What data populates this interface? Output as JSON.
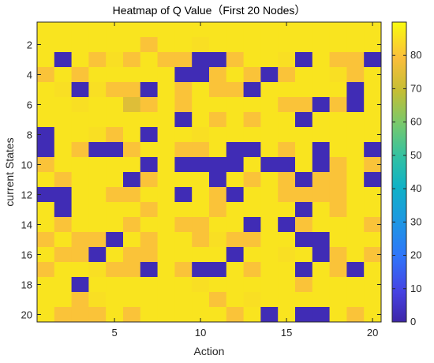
{
  "chart_data": {
    "type": "heatmap",
    "title": "Heatmap of Q Value（First 20 Nodes）",
    "xlabel": "Action",
    "ylabel": "current States",
    "xlim": [
      0.5,
      20.5
    ],
    "ylim": [
      0.5,
      20.5
    ],
    "x_ticks": [
      5,
      10,
      15,
      20
    ],
    "y_ticks": [
      2,
      4,
      6,
      8,
      10,
      12,
      14,
      16,
      18,
      20
    ],
    "colorbar": {
      "min": 0,
      "max": 90,
      "ticks": [
        0,
        10,
        20,
        30,
        40,
        50,
        60,
        70,
        80
      ],
      "colormap": "parula"
    },
    "x": [
      1,
      2,
      3,
      4,
      5,
      6,
      7,
      8,
      9,
      10,
      11,
      12,
      13,
      14,
      15,
      16,
      17,
      18,
      19,
      20
    ],
    "y": [
      1,
      2,
      3,
      4,
      5,
      6,
      7,
      8,
      9,
      10,
      11,
      12,
      13,
      14,
      15,
      16,
      17,
      18,
      19,
      20
    ],
    "values": [
      [
        86,
        86,
        86,
        86,
        86,
        86,
        86,
        86,
        86,
        86,
        86,
        86,
        86,
        86,
        86,
        86,
        86,
        86,
        86,
        86
      ],
      [
        86,
        86,
        86,
        86,
        86,
        86,
        80,
        86,
        86,
        85,
        86,
        86,
        86,
        86,
        86,
        86,
        86,
        86,
        86,
        86
      ],
      [
        86,
        2,
        86,
        80,
        85,
        80,
        86,
        80,
        80,
        2,
        2,
        80,
        86,
        86,
        85,
        2,
        86,
        80,
        80,
        2
      ],
      [
        80,
        86,
        80,
        86,
        86,
        86,
        86,
        86,
        2,
        2,
        80,
        86,
        80,
        2,
        80,
        86,
        86,
        85,
        80,
        86
      ],
      [
        86,
        85,
        2,
        85,
        80,
        80,
        2,
        86,
        80,
        86,
        80,
        80,
        2,
        86,
        86,
        86,
        86,
        86,
        2,
        86
      ],
      [
        86,
        86,
        85,
        86,
        86,
        74,
        80,
        86,
        80,
        86,
        86,
        86,
        86,
        86,
        80,
        80,
        2,
        80,
        2,
        86
      ],
      [
        86,
        86,
        86,
        86,
        86,
        86,
        86,
        86,
        2,
        86,
        80,
        86,
        80,
        86,
        86,
        2,
        86,
        86,
        86,
        86
      ],
      [
        2,
        86,
        86,
        85,
        80,
        86,
        2,
        86,
        86,
        85,
        86,
        86,
        86,
        86,
        86,
        86,
        86,
        86,
        86,
        86
      ],
      [
        2,
        86,
        80,
        2,
        2,
        80,
        86,
        86,
        80,
        80,
        86,
        2,
        2,
        86,
        80,
        86,
        2,
        86,
        86,
        2
      ],
      [
        80,
        86,
        86,
        86,
        86,
        86,
        2,
        86,
        2,
        2,
        2,
        2,
        86,
        2,
        2,
        86,
        2,
        80,
        86,
        80
      ],
      [
        86,
        80,
        86,
        86,
        86,
        2,
        80,
        86,
        86,
        86,
        2,
        86,
        80,
        86,
        80,
        2,
        80,
        80,
        86,
        2
      ],
      [
        2,
        2,
        86,
        86,
        80,
        80,
        86,
        86,
        2,
        86,
        80,
        2,
        86,
        86,
        80,
        80,
        80,
        80,
        86,
        86
      ],
      [
        86,
        2,
        86,
        86,
        86,
        86,
        80,
        86,
        86,
        86,
        80,
        86,
        86,
        86,
        86,
        2,
        86,
        80,
        86,
        86
      ],
      [
        86,
        80,
        86,
        86,
        86,
        80,
        86,
        86,
        80,
        80,
        86,
        86,
        2,
        86,
        2,
        80,
        86,
        86,
        86,
        80
      ],
      [
        80,
        86,
        80,
        80,
        2,
        86,
        80,
        86,
        86,
        80,
        85,
        80,
        80,
        86,
        86,
        2,
        2,
        86,
        86,
        86
      ],
      [
        86,
        80,
        80,
        2,
        86,
        80,
        80,
        86,
        86,
        86,
        86,
        2,
        86,
        86,
        85,
        86,
        2,
        80,
        86,
        80
      ],
      [
        80,
        86,
        86,
        85,
        80,
        80,
        2,
        86,
        80,
        2,
        2,
        86,
        80,
        86,
        86,
        2,
        86,
        80,
        2,
        86
      ],
      [
        86,
        86,
        2,
        86,
        86,
        86,
        86,
        86,
        86,
        85,
        86,
        86,
        86,
        86,
        86,
        80,
        86,
        86,
        86,
        86
      ],
      [
        86,
        86,
        80,
        85,
        86,
        86,
        86,
        86,
        86,
        86,
        80,
        86,
        85,
        86,
        86,
        86,
        86,
        86,
        86,
        86
      ],
      [
        86,
        80,
        80,
        80,
        86,
        80,
        86,
        86,
        86,
        86,
        86,
        80,
        86,
        2,
        86,
        2,
        2,
        86,
        80,
        86
      ]
    ]
  }
}
